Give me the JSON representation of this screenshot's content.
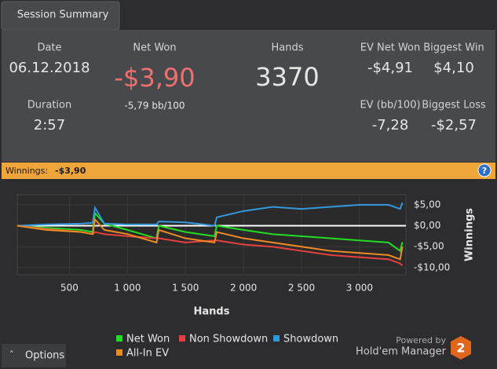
{
  "tab": "Session Summary",
  "summary": {
    "date": {
      "label": "Date",
      "value": "06.12.2018"
    },
    "net_won": {
      "label": "Net Won",
      "value": "-$3,90",
      "sub": "-5,79 bb/100"
    },
    "hands": {
      "label": "Hands",
      "value": 3370
    },
    "ev_net_won": {
      "label": "EV Net Won",
      "value": "-$4,91"
    },
    "biggest_win": {
      "label": "Biggest Win",
      "value": "$4,10"
    },
    "duration": {
      "label": "Duration",
      "value": "2:57"
    },
    "ev_bb": {
      "label": "EV (bb/100)",
      "value": "-7,28"
    },
    "biggest_loss": {
      "label": "Biggest Loss",
      "value": "-$2,57"
    }
  },
  "winnings_bar": {
    "label": "Winnings:",
    "value": "-$3,90",
    "help": "?"
  },
  "chart_data": {
    "type": "line",
    "xlabel": "Hands",
    "ylabel": "Winnings",
    "grid": true,
    "x": [
      50,
      300,
      600,
      700,
      720,
      800,
      1000,
      1250,
      1270,
      1500,
      1750,
      1770,
      2000,
      2250,
      2500,
      2750,
      3000,
      3250,
      3350,
      3370
    ],
    "series": [
      {
        "name": "Net Won",
        "color": "#22dd22",
        "values": [
          0,
          -0.5,
          -1,
          -1.5,
          3,
          0.5,
          -1,
          -3,
          0,
          -1.5,
          -2.5,
          0,
          -1,
          -2,
          -2.5,
          -3,
          -3.5,
          -4,
          -6,
          -3.9
        ]
      },
      {
        "name": "Non Showdown",
        "color": "#e84040",
        "values": [
          0,
          -0.8,
          -1.5,
          -2,
          -1.5,
          -2,
          -2.5,
          -3,
          -3,
          -4,
          -3.5,
          -3.5,
          -4.5,
          -5,
          -6,
          -7,
          -7.5,
          -8,
          -9,
          -9.5
        ]
      },
      {
        "name": "Showdown",
        "color": "#3399dd",
        "values": [
          0,
          0.3,
          0.5,
          0.7,
          4.3,
          0.5,
          0.3,
          0.3,
          1,
          0.8,
          0,
          2,
          3.5,
          4.5,
          4,
          4.5,
          5,
          5,
          4,
          5.5
        ]
      },
      {
        "name": "All-In EV",
        "color": "#f08a24",
        "values": [
          0,
          -1,
          -1.5,
          -2,
          1.5,
          -1,
          -2,
          -4,
          -1,
          -3,
          -4,
          -1.5,
          -3,
          -4,
          -5,
          -6,
          -6.5,
          -7,
          -8,
          -5
        ]
      }
    ],
    "xlim": [
      50,
      3400
    ],
    "ylim": [
      -11.7,
      7.4
    ],
    "xticks": [
      500,
      {
        "value": 1000,
        "label": "1 000"
      },
      {
        "value": 1500,
        "label": "1 500"
      },
      {
        "value": 2000,
        "label": "2 000"
      },
      {
        "value": 2500,
        "label": "2 500"
      },
      {
        "value": 3000,
        "label": "3 000"
      }
    ],
    "yticks": [
      {
        "value": 5,
        "label": "$5,00"
      },
      {
        "value": 0,
        "label": "$0,00"
      },
      {
        "value": -5,
        "label": "-$5,00"
      },
      {
        "value": -10,
        "label": "-$10,00"
      }
    ]
  },
  "options": "Options",
  "powered": {
    "line1": "Powered by",
    "line2": "Hold'em Manager",
    "logo": "2"
  }
}
